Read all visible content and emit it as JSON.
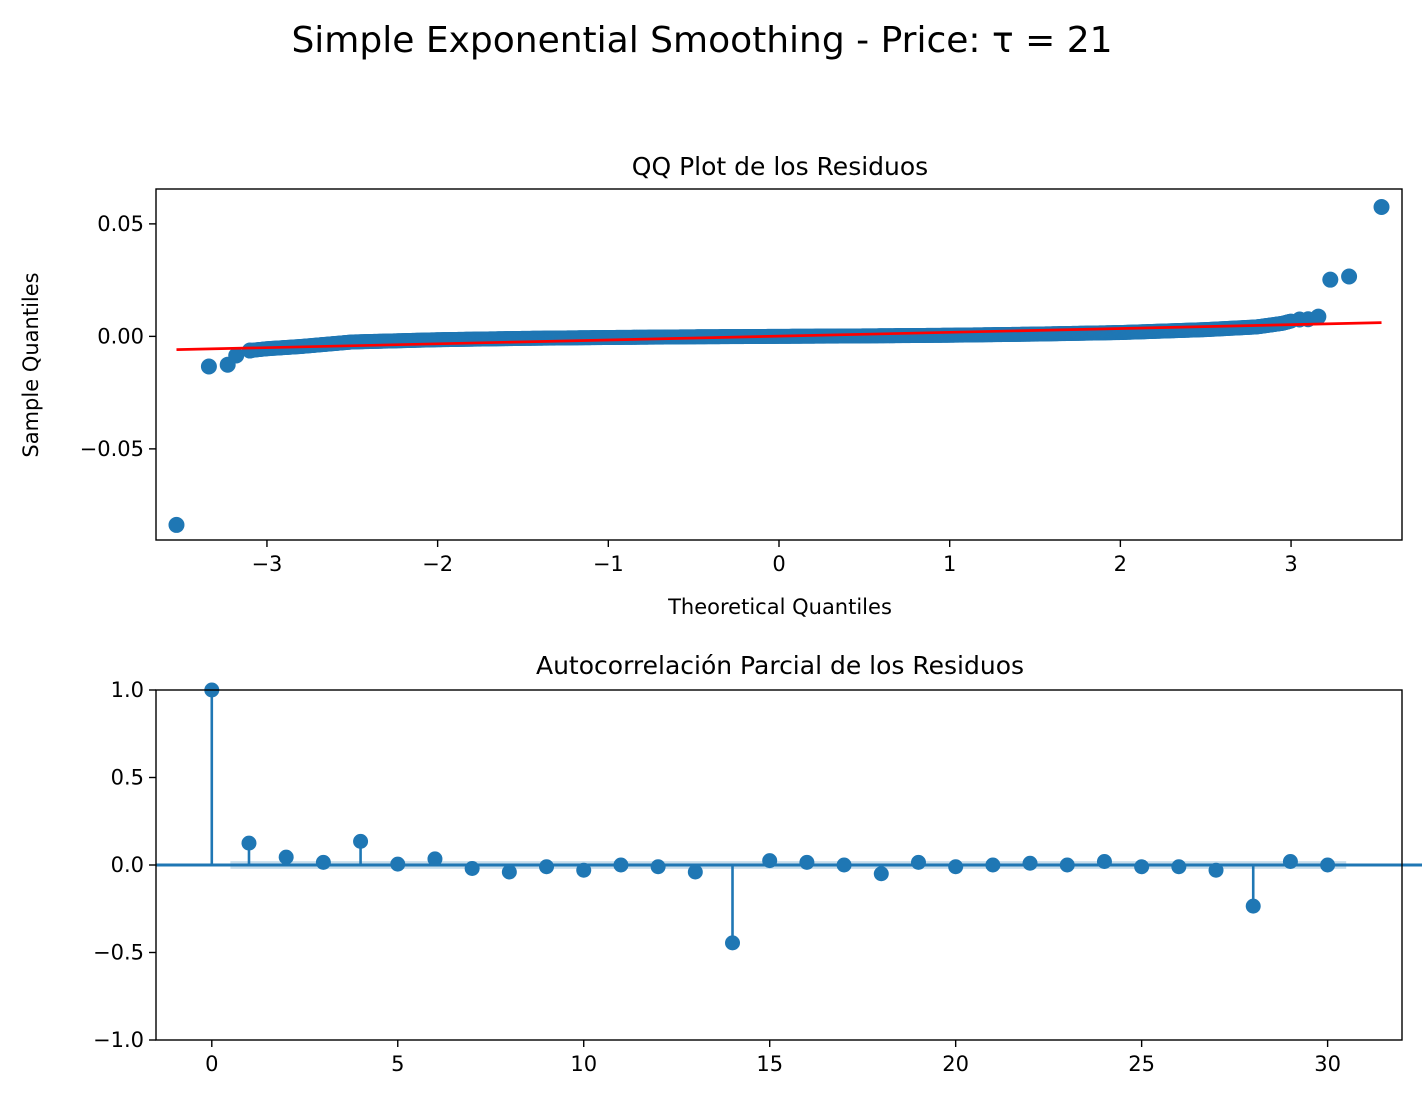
{
  "figure": {
    "suptitle": "Simple Exponential Smoothing - Price: τ = 21"
  },
  "chart_data": [
    {
      "type": "scatter",
      "title": "QQ Plot de los Residuos",
      "xlabel": "Theoretical Quantiles",
      "ylabel": "Sample Quantiles",
      "xlim": [
        -3.65,
        3.65
      ],
      "ylim": [
        -0.0905,
        0.0655
      ],
      "xticks": [
        -3,
        -2,
        -1,
        0,
        1,
        2,
        3
      ],
      "xtick_labels": [
        "−3",
        "−2",
        "−1",
        "0",
        "1",
        "2",
        "3"
      ],
      "yticks": [
        0.05,
        0.0,
        -0.05
      ],
      "ytick_labels": [
        "0.05",
        "0.00",
        "−0.05"
      ],
      "marker_color": "#1f77b4",
      "line_color": "#ff0000",
      "reference_line": {
        "x": [
          -3.53,
          3.53
        ],
        "y": [
          -0.0059,
          0.0061
        ]
      },
      "outliers": {
        "x": [
          -3.53,
          -3.34,
          -3.23,
          -3.18,
          -3.1,
          3.05,
          3.1,
          3.16,
          3.23,
          3.34,
          3.53
        ],
        "y": [
          -0.0838,
          -0.0134,
          -0.0126,
          -0.0085,
          -0.0063,
          0.0075,
          0.0076,
          0.0088,
          0.0252,
          0.0266,
          0.0575
        ]
      },
      "body_quantiles": {
        "x": [
          -3.1,
          -3.0,
          -2.8,
          -2.5,
          -2.0,
          -1.5,
          -1.0,
          -0.5,
          0.0,
          0.5,
          1.0,
          1.5,
          2.0,
          2.5,
          2.8,
          2.95,
          3.0
        ],
        "y": [
          -0.0063,
          -0.0055,
          -0.0045,
          -0.0025,
          -0.0015,
          -0.0009,
          -0.0005,
          -0.0002,
          0.0,
          0.0002,
          0.0005,
          0.001,
          0.0017,
          0.003,
          0.0042,
          0.0058,
          0.0068
        ]
      }
    },
    {
      "type": "stem",
      "title": "Autocorrelación Parcial de los Residuos",
      "xlabel": "",
      "ylabel": "",
      "xlim": [
        -1.5,
        32.0
      ],
      "ylim": [
        -1.0,
        1.0
      ],
      "xticks": [
        0,
        5,
        10,
        15,
        20,
        25,
        30
      ],
      "xtick_labels": [
        "0",
        "5",
        "10",
        "15",
        "20",
        "25",
        "30"
      ],
      "yticks": [
        1.0,
        0.5,
        0.0,
        -0.5,
        -1.0
      ],
      "ytick_labels": [
        "1.0",
        "0.5",
        "0.0",
        "−0.5",
        "−1.0"
      ],
      "color": "#1f77b4",
      "confidence_band": {
        "x": [
          0.5,
          30.5
        ],
        "upper": 0.022,
        "lower": -0.022
      },
      "x": [
        0,
        1,
        2,
        3,
        4,
        5,
        6,
        7,
        8,
        9,
        10,
        11,
        12,
        13,
        14,
        15,
        16,
        17,
        18,
        19,
        20,
        21,
        22,
        23,
        24,
        25,
        26,
        27,
        28,
        29,
        30
      ],
      "values": [
        1.0,
        0.125,
        0.045,
        0.015,
        0.135,
        0.005,
        0.035,
        -0.02,
        -0.04,
        -0.01,
        -0.03,
        0.0,
        -0.01,
        -0.04,
        -0.445,
        0.025,
        0.015,
        0.0,
        -0.05,
        0.015,
        -0.01,
        0.0,
        0.01,
        0.0,
        0.02,
        -0.01,
        -0.01,
        -0.03,
        -0.235,
        0.02,
        0.0
      ]
    }
  ]
}
